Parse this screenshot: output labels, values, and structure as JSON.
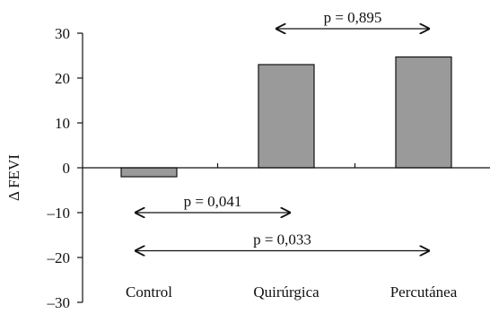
{
  "chart_data": {
    "type": "bar",
    "categories": [
      "Control",
      "Quirúrgica",
      "Percutánea"
    ],
    "values": [
      -2,
      23,
      24.7
    ],
    "ylabel": "Δ FEVI",
    "ylim": [
      -30,
      30
    ],
    "yticks": [
      30,
      20,
      10,
      0,
      -10,
      -20,
      -30
    ],
    "ytick_labels": [
      "30",
      "20",
      "10",
      "0",
      "–10",
      "–20",
      "–30"
    ],
    "bar_color": "#9a9a9a",
    "grid": false,
    "legend": "none",
    "annotations": [
      {
        "text": "p = 0,895",
        "from": "Quirúrgica",
        "to": "Percutánea",
        "y": 31
      },
      {
        "text": "p = 0,041",
        "from": "Control",
        "to": "Quirúrgica",
        "y": -10
      },
      {
        "text": "p = 0,033",
        "from": "Control",
        "to": "Percutánea",
        "y": -18.5
      }
    ]
  }
}
